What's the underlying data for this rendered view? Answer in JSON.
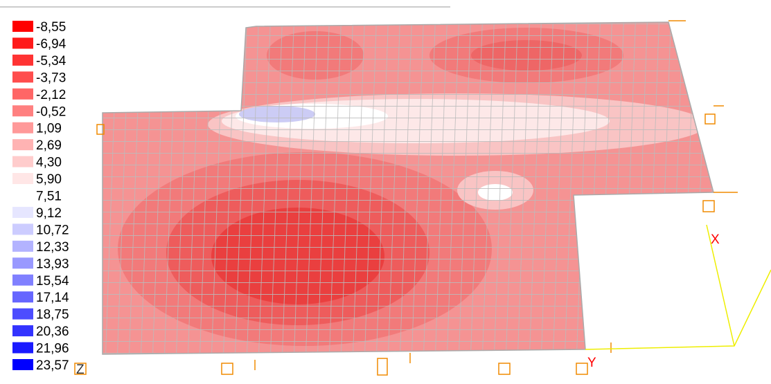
{
  "legend": {
    "items": [
      {
        "label": "-8,55",
        "color": "#ff0000"
      },
      {
        "label": "-6,94",
        "color": "#ff1a1a"
      },
      {
        "label": "-5,34",
        "color": "#ff3333"
      },
      {
        "label": "-3,73",
        "color": "#ff4d4d"
      },
      {
        "label": "-2,12",
        "color": "#ff6666"
      },
      {
        "label": "-0,52",
        "color": "#ff8080"
      },
      {
        "label": "1,09",
        "color": "#ff9999"
      },
      {
        "label": "2,69",
        "color": "#ffb3b3"
      },
      {
        "label": "4,30",
        "color": "#ffcccc"
      },
      {
        "label": "5,90",
        "color": "#ffe6e6"
      },
      {
        "label": "7,51",
        "color": "#ffffff"
      },
      {
        "label": "9,12",
        "color": "#e6e6ff"
      },
      {
        "label": "10,72",
        "color": "#ccccff"
      },
      {
        "label": "12,33",
        "color": "#b3b3ff"
      },
      {
        "label": "13,93",
        "color": "#9999ff"
      },
      {
        "label": "15,54",
        "color": "#8080ff"
      },
      {
        "label": "17,14",
        "color": "#6666ff"
      },
      {
        "label": "18,75",
        "color": "#4d4dff"
      },
      {
        "label": "20,36",
        "color": "#3333ff"
      },
      {
        "label": "21,96",
        "color": "#1a1aff"
      },
      {
        "label": "23,57",
        "color": "#0000ff"
      }
    ]
  },
  "axes": {
    "x": "X",
    "y": "Y",
    "z": "Z"
  }
}
